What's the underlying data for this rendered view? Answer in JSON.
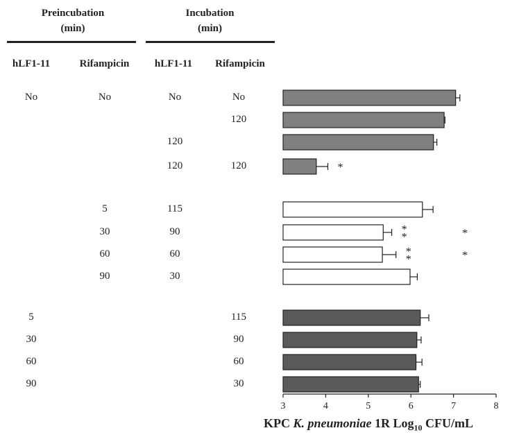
{
  "table": {
    "groups": [
      {
        "label": "Preincubation",
        "sublabel": "(min)"
      },
      {
        "label": "Incubation",
        "sublabel": "(min)"
      }
    ],
    "columns": [
      "hLF1-11",
      "Rifampicin",
      "hLF1-11",
      "Rifampicin"
    ],
    "rows": [
      [
        "No",
        "No",
        "No",
        "No"
      ],
      [
        "",
        "",
        "",
        "120"
      ],
      [
        "",
        "",
        "120",
        ""
      ],
      [
        "",
        "",
        "120",
        "120"
      ],
      [
        "",
        "5",
        "115",
        ""
      ],
      [
        "",
        "30",
        "90",
        ""
      ],
      [
        "",
        "60",
        "60",
        ""
      ],
      [
        "",
        "90",
        "30",
        ""
      ],
      [
        "5",
        "",
        "",
        "115"
      ],
      [
        "30",
        "",
        "",
        "90"
      ],
      [
        "60",
        "",
        "",
        "60"
      ],
      [
        "90",
        "",
        "",
        "30"
      ]
    ]
  },
  "chart_data": {
    "type": "bar",
    "orientation": "horizontal",
    "xlabel_parts": {
      "pre": "KPC ",
      "italic": "K. pneumoniae",
      "mid": " 1R Log",
      "sub": "10",
      "post": " CFU/mL"
    },
    "xlim": [
      3,
      8
    ],
    "xticks": [
      "3",
      "4",
      "5",
      "6",
      "7",
      "8"
    ],
    "values": [
      7.05,
      6.78,
      6.53,
      3.78,
      6.27,
      5.35,
      5.33,
      5.98,
      6.22,
      6.14,
      6.12,
      6.18
    ],
    "errors": [
      0.1,
      0.02,
      0.08,
      0.27,
      0.25,
      0.2,
      0.32,
      0.17,
      0.2,
      0.1,
      0.14,
      0.04
    ],
    "groups": [
      0,
      0,
      0,
      0,
      1,
      1,
      1,
      1,
      2,
      2,
      2,
      2
    ],
    "group_colors": [
      "#808080",
      "#ffffff",
      "#5a5a5a"
    ],
    "annotations": [
      {
        "row": 3,
        "near": "*",
        "far": ""
      },
      {
        "row": 5,
        "near": "**",
        "far": "*"
      },
      {
        "row": 6,
        "near": "**",
        "far": "*"
      }
    ]
  }
}
